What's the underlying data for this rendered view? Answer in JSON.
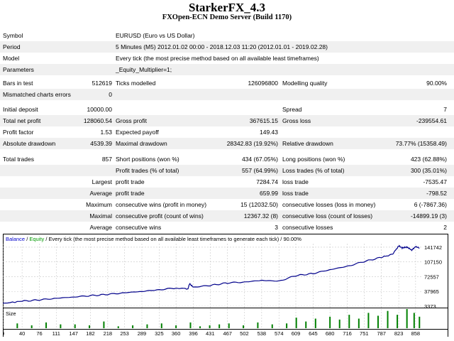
{
  "header": {
    "title": "StarkerFX_4.3",
    "subtitle": "FXOpen-ECN Demo Server (Build 1170)"
  },
  "summary": {
    "symbol_label": "Symbol",
    "symbol_value": "EURUSD (Euro vs US Dollar)",
    "period_label": "Period",
    "period_value": "5 Minutes (M5) 2012.01.02 00:00 - 2018.12.03 11:20 (2012.01.01 - 2019.02.28)",
    "model_label": "Model",
    "model_value": "Every tick (the most precise method based on all available least timeframes)",
    "parameters_label": "Parameters",
    "parameters_value": "_Equity_Multiplier=1;",
    "bars_label": "Bars in test",
    "bars_value": "512619",
    "ticks_label": "Ticks modelled",
    "ticks_value": "126096800",
    "quality_label": "Modelling quality",
    "quality_value": "90.00%",
    "mismatch_label": "Mismatched charts errors",
    "mismatch_value": "0",
    "deposit_label": "Initial deposit",
    "deposit_value": "10000.00",
    "spread_label": "Spread",
    "spread_value": "7",
    "netprofit_label": "Total net profit",
    "netprofit_value": "128060.54",
    "grossprofit_label": "Gross profit",
    "grossprofit_value": "367615.15",
    "grossloss_label": "Gross loss",
    "grossloss_value": "-239554.61",
    "pf_label": "Profit factor",
    "pf_value": "1.53",
    "payoff_label": "Expected payoff",
    "payoff_value": "149.43",
    "absdd_label": "Absolute drawdown",
    "absdd_value": "4539.39",
    "maxdd_label": "Maximal drawdown",
    "maxdd_value": "28342.83 (19.92%)",
    "reldd_label": "Relative drawdown",
    "reldd_value": "73.77% (15358.49)",
    "trades_label": "Total trades",
    "trades_value": "857",
    "short_label": "Short positions (won %)",
    "short_value": "434 (67.05%)",
    "long_label": "Long positions (won %)",
    "long_value": "423 (62.88%)",
    "ptrades_label": "Profit trades (% of total)",
    "ptrades_value": "557 (64.99%)",
    "ltrades_label": "Loss trades (% of total)",
    "ltrades_value": "300 (35.01%)",
    "largest_label": "Largest",
    "largest_profit_label": "profit trade",
    "largest_profit_value": "7284.74",
    "largest_loss_label": "loss trade",
    "largest_loss_value": "-7535.47",
    "average_label": "Average",
    "average_profit_label": "profit trade",
    "average_profit_value": "659.99",
    "average_loss_label": "loss trade",
    "average_loss_value": "-798.52",
    "maximum_label": "Maximum",
    "max_wins_label": "consecutive wins (profit in money)",
    "max_wins_value": "15 (12032.50)",
    "max_losses_label": "consecutive losses (loss in money)",
    "max_losses_value": "6 (-7867.36)",
    "maximal_label": "Maximal",
    "maximal_profit_label": "consecutive profit (count of wins)",
    "maximal_profit_value": "12367.32 (8)",
    "maximal_loss_label": "consecutive loss (count of losses)",
    "maximal_loss_value": "-14899.19 (3)",
    "avgcons_label": "Average",
    "avg_wins_label": "consecutive wins",
    "avg_wins_value": "3",
    "avg_losses_label": "consecutive losses",
    "avg_losses_value": "2"
  },
  "chart_data": {
    "type": "line",
    "legend_balance": "Balance",
    "legend_sep": " / ",
    "legend_equity": "Equity",
    "legend_text": " / Every tick (the most precise method based on all available least timeframes to generate each tick) / 90.00%",
    "y_ticks": [
      "141742",
      "107150",
      "72557",
      "37965",
      "3373"
    ],
    "y_tick_values": [
      141742,
      107150,
      72557,
      37965,
      3373
    ],
    "ylim": [
      3373,
      150000
    ],
    "x_ticks": [
      "0",
      "40",
      "76",
      "111",
      "147",
      "182",
      "218",
      "253",
      "289",
      "325",
      "360",
      "396",
      "431",
      "467",
      "502",
      "538",
      "574",
      "609",
      "645",
      "680",
      "716",
      "751",
      "787",
      "823",
      "858"
    ],
    "xlim": [
      0,
      870
    ],
    "size_label": "Size",
    "balance_color": "#00008b",
    "size_color": "#008000",
    "series": [
      {
        "name": "Balance",
        "x": [
          0,
          40,
          76,
          111,
          147,
          182,
          218,
          253,
          289,
          325,
          360,
          385,
          388,
          396,
          431,
          467,
          502,
          538,
          574,
          609,
          645,
          680,
          716,
          751,
          787,
          810,
          823,
          830,
          840,
          850,
          858,
          866
        ],
        "y": [
          10000,
          15000,
          18000,
          22000,
          25000,
          28000,
          31000,
          35000,
          38000,
          42000,
          46000,
          44000,
          56000,
          48000,
          52000,
          58000,
          60000,
          64000,
          62000,
          75000,
          80000,
          89000,
          97000,
          108000,
          118000,
          125000,
          145000,
          140000,
          142000,
          135000,
          143000,
          140000
        ]
      }
    ],
    "size": {
      "x": [
        30,
        60,
        90,
        120,
        150,
        180,
        210,
        240,
        270,
        300,
        330,
        360,
        390,
        410,
        430,
        450,
        470,
        500,
        530,
        560,
        590,
        610,
        630,
        650,
        680,
        700,
        720,
        740,
        760,
        780,
        800,
        820,
        840,
        855,
        866
      ],
      "values": [
        0.25,
        0.15,
        0.3,
        0.2,
        0.2,
        0.15,
        0.35,
        0.1,
        0.15,
        0.2,
        0.25,
        0.15,
        0.3,
        0.1,
        0.15,
        0.2,
        0.25,
        0.15,
        0.3,
        0.2,
        0.25,
        0.55,
        0.35,
        0.5,
        0.6,
        0.45,
        0.7,
        0.5,
        0.8,
        0.65,
        0.9,
        0.7,
        1.0,
        0.8,
        0.6
      ]
    }
  }
}
